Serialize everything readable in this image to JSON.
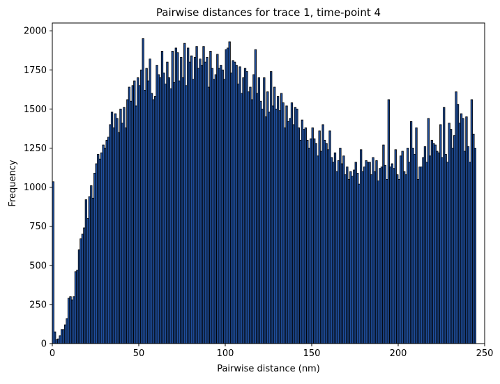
{
  "chart_data": {
    "type": "bar",
    "title": "Pairwise distances for trace 1, time-point 4",
    "xlabel": "Pairwise distance (nm)",
    "ylabel": "Frequency",
    "xlim": [
      0,
      250
    ],
    "ylim": [
      0,
      2050
    ],
    "xticks": [
      0,
      50,
      100,
      150,
      200,
      250
    ],
    "yticks": [
      0,
      250,
      500,
      750,
      1000,
      1250,
      1500,
      1750,
      2000
    ],
    "grid": false,
    "bin_width": 1,
    "bar_color": "#1f4e9c",
    "edge_color": "#000000",
    "bin_start": 0,
    "values": [
      1035,
      75,
      25,
      30,
      50,
      90,
      90,
      120,
      160,
      290,
      300,
      280,
      300,
      460,
      470,
      600,
      670,
      700,
      740,
      920,
      800,
      940,
      1010,
      930,
      1090,
      1150,
      1210,
      1180,
      1220,
      1270,
      1250,
      1300,
      1320,
      1400,
      1480,
      1380,
      1470,
      1440,
      1350,
      1500,
      1410,
      1510,
      1380,
      1560,
      1640,
      1550,
      1650,
      1680,
      1520,
      1700,
      1650,
      1750,
      1950,
      1620,
      1760,
      1680,
      1820,
      1600,
      1560,
      1580,
      1780,
      1720,
      1700,
      1870,
      1730,
      1660,
      1800,
      1700,
      1630,
      1870,
      1670,
      1890,
      1860,
      1680,
      1830,
      1700,
      1920,
      1650,
      1890,
      1800,
      1840,
      1690,
      1830,
      1900,
      1760,
      1820,
      1780,
      1900,
      1800,
      1830,
      1640,
      1870,
      1760,
      1690,
      1720,
      1850,
      1760,
      1780,
      1750,
      1690,
      1880,
      1890,
      1930,
      1730,
      1810,
      1800,
      1780,
      1660,
      1770,
      1600,
      1700,
      1760,
      1740,
      1610,
      1640,
      1560,
      1720,
      1880,
      1600,
      1700,
      1550,
      1500,
      1700,
      1450,
      1610,
      1480,
      1740,
      1520,
      1640,
      1500,
      1580,
      1490,
      1600,
      1540,
      1380,
      1520,
      1420,
      1440,
      1540,
      1400,
      1510,
      1500,
      1380,
      1300,
      1430,
      1370,
      1380,
      1300,
      1250,
      1310,
      1380,
      1310,
      1280,
      1200,
      1360,
      1230,
      1400,
      1300,
      1280,
      1240,
      1360,
      1190,
      1160,
      1220,
      1100,
      1170,
      1250,
      1150,
      1200,
      1080,
      1130,
      1050,
      1100,
      1070,
      1110,
      1160,
      1090,
      1020,
      1240,
      1100,
      1130,
      1170,
      1160,
      1160,
      1080,
      1190,
      1100,
      1170,
      1040,
      1120,
      1130,
      1270,
      1140,
      1050,
      1560,
      1130,
      1150,
      1120,
      1240,
      1080,
      1050,
      1200,
      1230,
      1100,
      1080,
      1250,
      1160,
      1420,
      1250,
      1210,
      1380,
      1050,
      1130,
      1130,
      1190,
      1260,
      1160,
      1440,
      1200,
      1300,
      1280,
      1270,
      1230,
      1220,
      1400,
      1190,
      1510,
      1210,
      1160,
      1410,
      1370,
      1250,
      1330,
      1610,
      1530,
      1410,
      1470,
      1440,
      1230,
      1450,
      1260,
      1160,
      1560,
      1340,
      1250
    ]
  }
}
